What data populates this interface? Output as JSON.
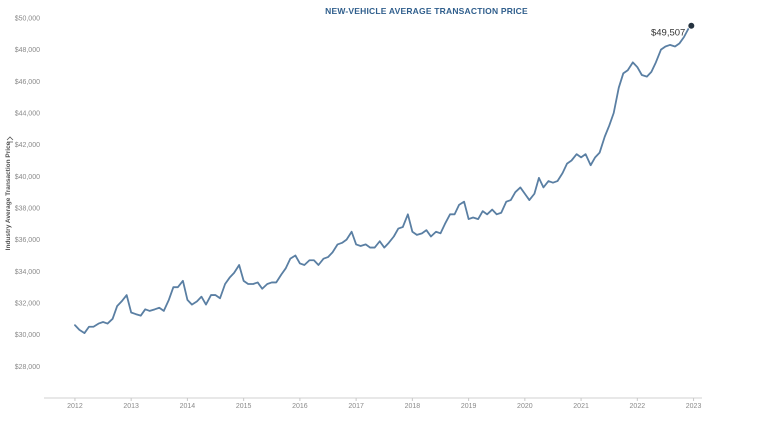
{
  "chart_data": {
    "type": "line",
    "title": "NEW-VEHICLE AVERAGE TRANSACTION PRICE",
    "ylabel": "Industry Average Transaction Price",
    "xlabel": "",
    "ylim": [
      26000,
      50000
    ],
    "xlim": [
      2011.45,
      2023.15
    ],
    "y_ticks": [
      28000,
      30000,
      32000,
      34000,
      36000,
      38000,
      40000,
      42000,
      44000,
      46000,
      48000,
      50000
    ],
    "y_tick_labels": [
      "$28,000",
      "$30,000",
      "$32,000",
      "$34,000",
      "$36,000",
      "$38,000",
      "$40,000",
      "$42,000",
      "$44,000",
      "$46,000",
      "$48,000",
      "$50,000"
    ],
    "x_ticks": [
      2012,
      2013,
      2014,
      2015,
      2016,
      2017,
      2018,
      2019,
      2020,
      2021,
      2022,
      2023
    ],
    "x_tick_labels": [
      "2012",
      "2013",
      "2014",
      "2015",
      "2016",
      "2017",
      "2018",
      "2019",
      "2020",
      "2021",
      "2022",
      "2023"
    ],
    "grid": false,
    "line_color": "#5a7fa3",
    "marker_color": "#24323f",
    "annotation": {
      "label": "$49,507",
      "x": 2022.96,
      "y": 49507
    },
    "series": [
      {
        "x": [
          2012.0,
          2012.08,
          2012.17,
          2012.25,
          2012.33,
          2012.42,
          2012.5,
          2012.58,
          2012.67,
          2012.75,
          2012.83,
          2012.92,
          2013.0,
          2013.08,
          2013.17,
          2013.25,
          2013.33,
          2013.42,
          2013.5,
          2013.58,
          2013.67,
          2013.75,
          2013.83,
          2013.92,
          2014.0,
          2014.08,
          2014.17,
          2014.25,
          2014.33,
          2014.42,
          2014.5,
          2014.58,
          2014.67,
          2014.75,
          2014.83,
          2014.92,
          2015.0,
          2015.08,
          2015.17,
          2015.25,
          2015.33,
          2015.42,
          2015.5,
          2015.58,
          2015.67,
          2015.75,
          2015.83,
          2015.92,
          2016.0,
          2016.08,
          2016.17,
          2016.25,
          2016.33,
          2016.42,
          2016.5,
          2016.58,
          2016.67,
          2016.75,
          2016.83,
          2016.92,
          2017.0,
          2017.08,
          2017.17,
          2017.25,
          2017.33,
          2017.42,
          2017.5,
          2017.58,
          2017.67,
          2017.75,
          2017.83,
          2017.92,
          2018.0,
          2018.08,
          2018.17,
          2018.25,
          2018.33,
          2018.42,
          2018.5,
          2018.58,
          2018.67,
          2018.75,
          2018.83,
          2018.92,
          2019.0,
          2019.08,
          2019.17,
          2019.25,
          2019.33,
          2019.42,
          2019.5,
          2019.58,
          2019.67,
          2019.75,
          2019.83,
          2019.92,
          2020.0,
          2020.08,
          2020.17,
          2020.25,
          2020.33,
          2020.42,
          2020.5,
          2020.58,
          2020.67,
          2020.75,
          2020.83,
          2020.92,
          2021.0,
          2021.08,
          2021.17,
          2021.25,
          2021.33,
          2021.42,
          2021.5,
          2021.58,
          2021.67,
          2021.75,
          2021.83,
          2021.92,
          2022.0,
          2022.08,
          2022.17,
          2022.25,
          2022.33,
          2022.42,
          2022.5,
          2022.58,
          2022.67,
          2022.75,
          2022.83,
          2022.92,
          2022.96
        ],
        "y": [
          30600,
          30300,
          30100,
          30500,
          30500,
          30700,
          30800,
          30700,
          31000,
          31800,
          32100,
          32500,
          31400,
          31300,
          31200,
          31600,
          31500,
          31600,
          31700,
          31500,
          32200,
          33000,
          33000,
          33400,
          32200,
          31900,
          32100,
          32400,
          31900,
          32500,
          32500,
          32300,
          33200,
          33600,
          33900,
          34400,
          33400,
          33200,
          33200,
          33300,
          32900,
          33200,
          33300,
          33300,
          33800,
          34200,
          34800,
          35000,
          34500,
          34400,
          34700,
          34700,
          34400,
          34800,
          34900,
          35200,
          35700,
          35800,
          36000,
          36500,
          35700,
          35600,
          35700,
          35500,
          35500,
          35900,
          35500,
          35800,
          36200,
          36700,
          36800,
          37600,
          36500,
          36300,
          36400,
          36600,
          36200,
          36500,
          36400,
          37000,
          37600,
          37600,
          38200,
          38400,
          37300,
          37400,
          37300,
          37800,
          37600,
          37900,
          37600,
          37700,
          38400,
          38500,
          39000,
          39300,
          38900,
          38500,
          38900,
          39900,
          39300,
          39700,
          39600,
          39700,
          40200,
          40800,
          41000,
          41400,
          41200,
          41400,
          40700,
          41200,
          41500,
          42500,
          43200,
          44000,
          45600,
          46500,
          46700,
          47200,
          46900,
          46400,
          46300,
          46600,
          47200,
          48000,
          48200,
          48300,
          48200,
          48400,
          48800,
          49400,
          49507
        ]
      }
    ]
  }
}
